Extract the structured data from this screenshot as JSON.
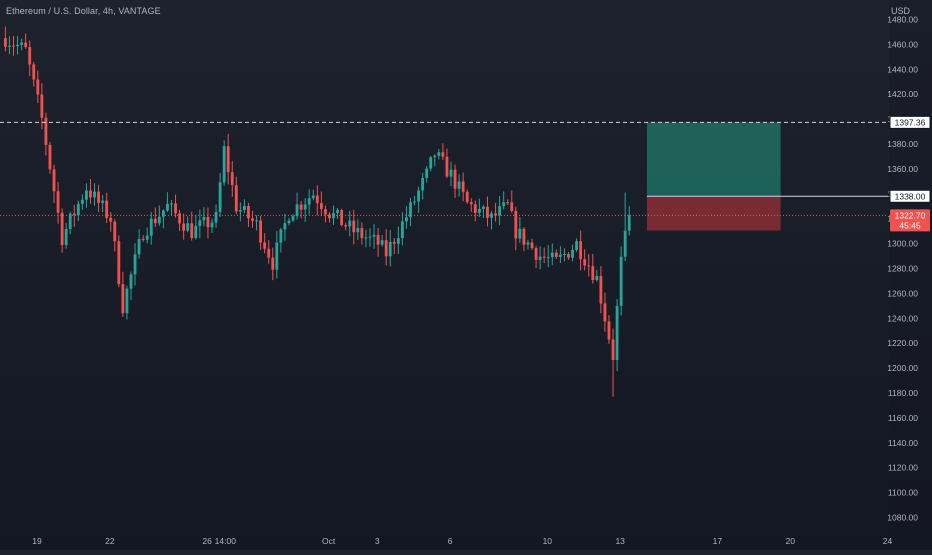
{
  "header": {
    "symbol_title": "Ethereum / U.S. Dollar, 4h, VANTAGE",
    "currency": "USD"
  },
  "colors": {
    "up": "#26a69a",
    "down": "#ef5350",
    "axis_text": "#b2b5be",
    "profit_zone": "#1f6e63",
    "loss_zone": "#8a2e35"
  },
  "chart_data": {
    "type": "candlestick",
    "ylim": [
      1070,
      1490
    ],
    "y_ticks": [
      1080,
      1100,
      1120,
      1140,
      1160,
      1180,
      1200,
      1220,
      1240,
      1260,
      1280,
      1300,
      1320,
      1340,
      1360,
      1380,
      1400,
      1420,
      1440,
      1460,
      1480
    ],
    "y_tick_labels": [
      "1080.00",
      "1100.00",
      "1120.00",
      "1140.00",
      "1160.00",
      "1180.00",
      "1200.00",
      "1220.00",
      "1240.00",
      "1260.00",
      "1280.00",
      "1300.00",
      "1320.00",
      "1340.00",
      "1360.00",
      "1380.00",
      "1400.00",
      "1420.00",
      "1440.00",
      "1460.00",
      "1480.00"
    ],
    "x_ticks": [
      {
        "label": "19",
        "t": 0
      },
      {
        "label": "22",
        "t": 3
      },
      {
        "label": "26",
        "t": 7
      },
      {
        "label": "14:00",
        "t": 7.75
      },
      {
        "label": "Oct",
        "t": 12
      },
      {
        "label": "3",
        "t": 14
      },
      {
        "label": "6",
        "t": 17
      },
      {
        "label": "10",
        "t": 21
      },
      {
        "label": "13",
        "t": 24
      },
      {
        "label": "17",
        "t": 28
      },
      {
        "label": "20",
        "t": 31
      },
      {
        "label": "24",
        "t": 35
      }
    ],
    "horizontal_lines": [
      {
        "price": 1397.36,
        "label": "1397.36",
        "style": "dashed"
      },
      {
        "price": 1338.0,
        "label": "1338.00",
        "style": "solid"
      }
    ],
    "last_price": {
      "price": 1322.7,
      "label": "1322.70",
      "countdown": "45:45"
    },
    "position": {
      "entry": 1338.0,
      "target": 1397.36,
      "stop": 1310.5,
      "start_t": 25.1,
      "end_t": 30.6
    },
    "candle_series": {
      "t_start": -1.3,
      "t_step": 0.1667,
      "start_price": 1465,
      "pivots": [
        {
          "i": 0,
          "p": 1465
        },
        {
          "i": 5,
          "p": 1455
        },
        {
          "i": 9,
          "p": 1400
        },
        {
          "i": 14,
          "p": 1305
        },
        {
          "i": 20,
          "p": 1345
        },
        {
          "i": 26,
          "p": 1320
        },
        {
          "i": 29,
          "p": 1250
        },
        {
          "i": 34,
          "p": 1310
        },
        {
          "i": 40,
          "p": 1330
        },
        {
          "i": 46,
          "p": 1310
        },
        {
          "i": 52,
          "p": 1320
        },
        {
          "i": 54,
          "p": 1375
        },
        {
          "i": 57,
          "p": 1330
        },
        {
          "i": 62,
          "p": 1315
        },
        {
          "i": 66,
          "p": 1285
        },
        {
          "i": 70,
          "p": 1325
        },
        {
          "i": 76,
          "p": 1340
        },
        {
          "i": 80,
          "p": 1325
        },
        {
          "i": 86,
          "p": 1310
        },
        {
          "i": 92,
          "p": 1300
        },
        {
          "i": 94,
          "p": 1292
        },
        {
          "i": 100,
          "p": 1328
        },
        {
          "i": 104,
          "p": 1355
        },
        {
          "i": 106,
          "p": 1372
        },
        {
          "i": 110,
          "p": 1355
        },
        {
          "i": 114,
          "p": 1332
        },
        {
          "i": 120,
          "p": 1320
        },
        {
          "i": 124,
          "p": 1330
        },
        {
          "i": 126,
          "p": 1310
        },
        {
          "i": 132,
          "p": 1290
        },
        {
          "i": 136,
          "p": 1285
        },
        {
          "i": 141,
          "p": 1300
        },
        {
          "i": 146,
          "p": 1272
        },
        {
          "i": 150,
          "p": 1210
        },
        {
          "i": 152,
          "p": 1285
        },
        {
          "i": 154,
          "p": 1322.7
        }
      ]
    }
  }
}
